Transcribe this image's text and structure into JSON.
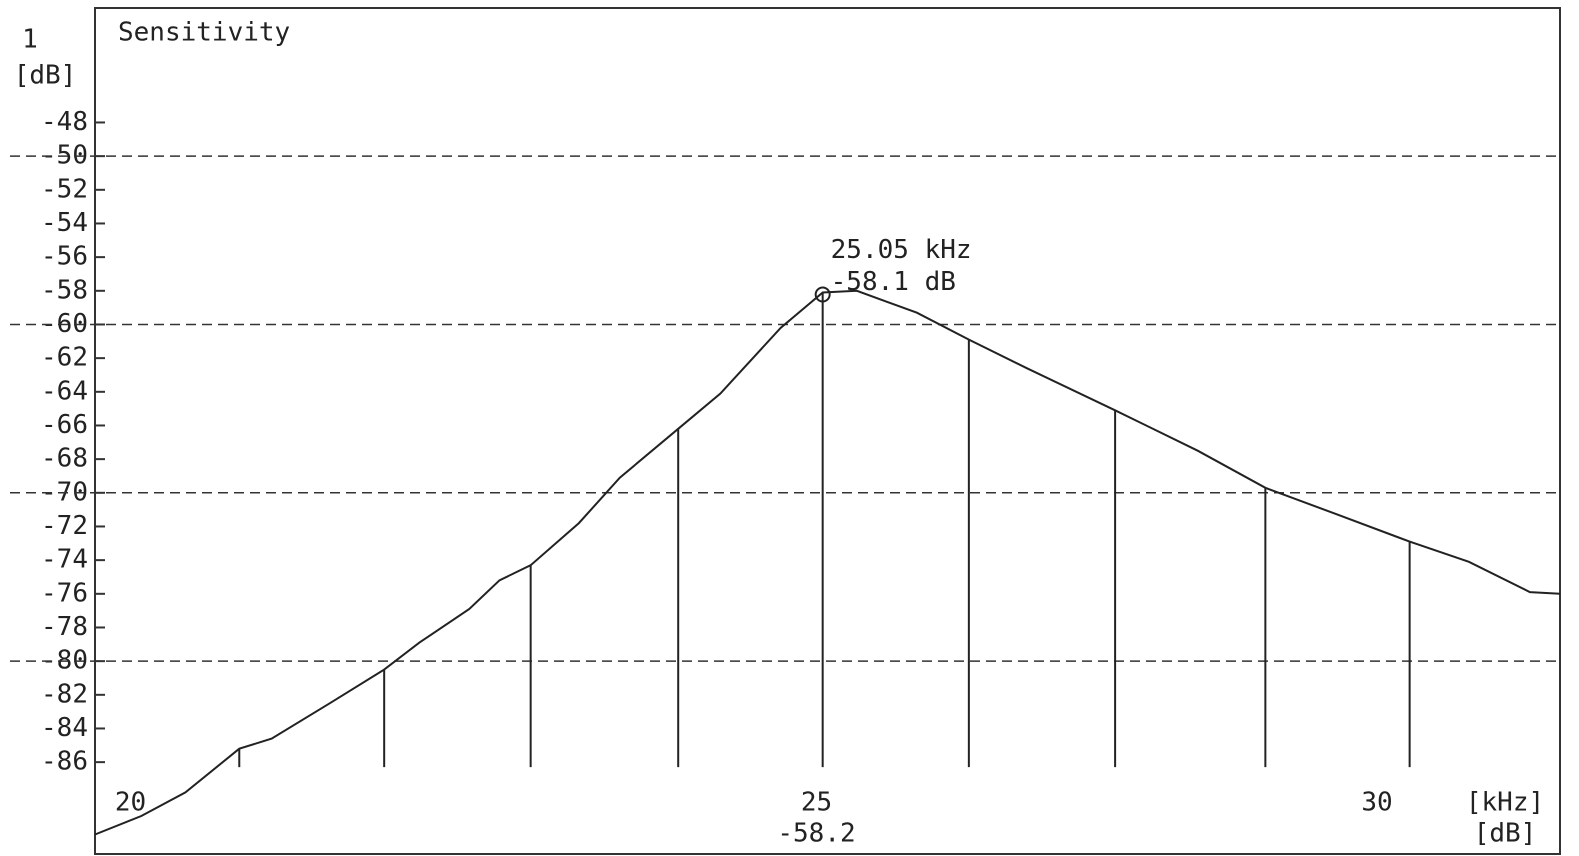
{
  "chart_data": {
    "type": "line",
    "title": "Sensitivity",
    "y_label_top": "1",
    "y_unit": "[dB]",
    "x_unit": "[kHz]",
    "cursor_unit": "[dB]",
    "cursor_readout": "-58.2",
    "xscale": "log",
    "xlim": [
      19.77,
      31.84
    ],
    "xticks": [
      20,
      25,
      30
    ],
    "ylim": [
      -91.1,
      -41.2
    ],
    "yticks": [
      -48,
      -50,
      -52,
      -54,
      -56,
      -58,
      -60,
      -62,
      -64,
      -66,
      -68,
      -70,
      -72,
      -74,
      -76,
      -78,
      -80,
      -82,
      -84,
      -86
    ],
    "grid": "every-10",
    "color": "#222222",
    "x": [
      19.77,
      20.07,
      20.36,
      20.72,
      20.94,
      21.34,
      21.72,
      21.97,
      22.33,
      22.55,
      22.78,
      23.14,
      23.45,
      23.9,
      24.23,
      24.71,
      25.05,
      25.33,
      25.83,
      26.27,
      26.77,
      27.55,
      28.3,
      28.93,
      29.62,
      30.32,
      30.91,
      31.53,
      31.84
    ],
    "values": [
      -90.3,
      -89.2,
      -87.8,
      -85.2,
      -84.6,
      -82.5,
      -80.5,
      -78.9,
      -76.9,
      -75.2,
      -74.3,
      -71.8,
      -69.1,
      -66.2,
      -64.1,
      -60.2,
      -58.1,
      -58.0,
      -59.3,
      -60.9,
      -62.6,
      -65.1,
      -67.5,
      -69.7,
      -71.3,
      -72.9,
      -74.1,
      -75.9,
      -76.0
    ],
    "stem": [
      false,
      false,
      false,
      true,
      false,
      false,
      true,
      false,
      false,
      false,
      true,
      false,
      false,
      true,
      false,
      false,
      true,
      false,
      false,
      true,
      false,
      true,
      false,
      true,
      false,
      true,
      false,
      false,
      false
    ],
    "marker": {
      "x": 25.05,
      "y": -58.1,
      "label_x": "25.05 kHz",
      "label_y": "-58.1 dB"
    }
  }
}
